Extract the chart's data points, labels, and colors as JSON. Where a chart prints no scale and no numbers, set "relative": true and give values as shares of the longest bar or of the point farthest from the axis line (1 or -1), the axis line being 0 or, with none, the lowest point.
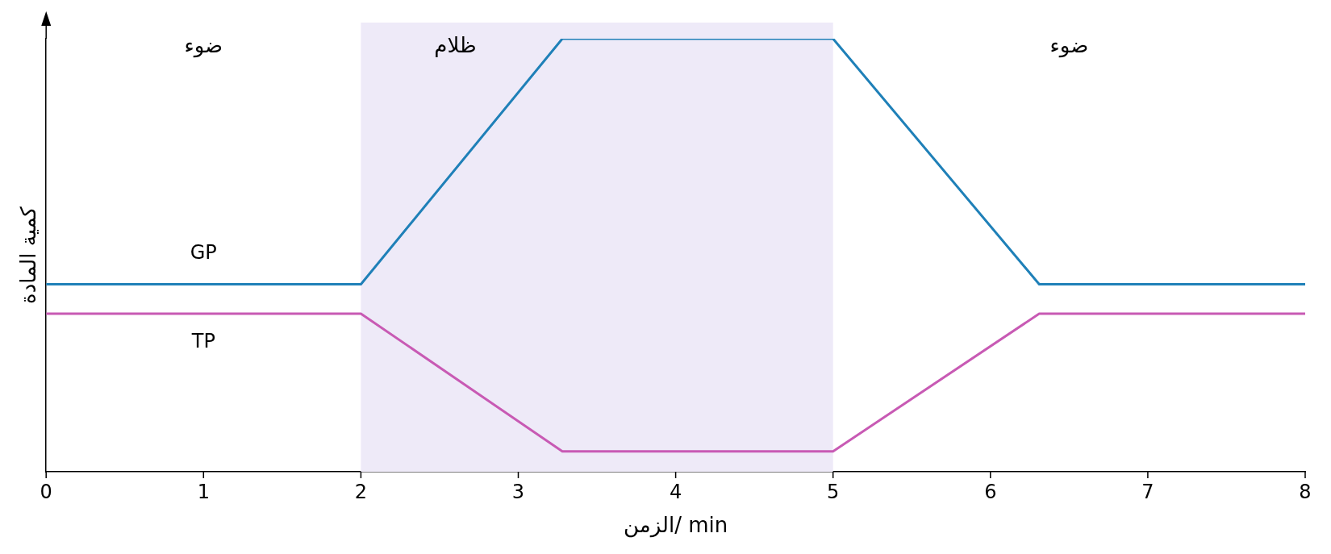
{
  "chart_data": {
    "type": "line",
    "xlabel": "الزمن/ min",
    "ylabel": "كمية المادة",
    "relative": true,
    "xlim": [
      0,
      8
    ],
    "xticks": [
      0,
      1,
      2,
      3,
      4,
      5,
      6,
      7,
      8
    ],
    "grid": false,
    "legend": false,
    "marker": "none",
    "line_style": "solid",
    "series": [
      {
        "name": "GP",
        "color": "#1f80b8",
        "x": [
          0,
          2,
          3.28,
          5,
          6.31,
          8
        ],
        "values": [
          0.433,
          0.433,
          1,
          1,
          0.433,
          0.433
        ]
      },
      {
        "name": "TP",
        "color": "#c85ab4",
        "x": [
          0,
          2,
          3.28,
          5,
          6.31,
          8
        ],
        "values": [
          0.365,
          0.365,
          0.047,
          0.047,
          0.365,
          0.365
        ]
      }
    ],
    "bands": [
      {
        "axis": "x",
        "from": 2,
        "to": 5,
        "label": "ظلام",
        "color": "#eeeaf8"
      }
    ],
    "annotations": [
      "ضوء",
      "ضوء"
    ]
  }
}
